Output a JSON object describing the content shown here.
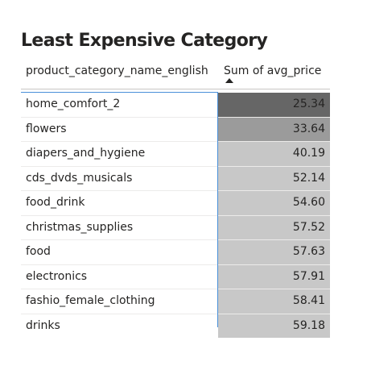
{
  "title": "Least Expensive Category",
  "chart_data": {
    "type": "table",
    "title": "Least Expensive Category",
    "columns": [
      "product_category_name_english",
      "Sum of avg_price"
    ],
    "sort": {
      "column": "Sum of avg_price",
      "direction": "ascending"
    },
    "rows": [
      {
        "category": "home_comfort_2",
        "value": "25.34"
      },
      {
        "category": "flowers",
        "value": "33.64"
      },
      {
        "category": "diapers_and_hygiene",
        "value": "40.19"
      },
      {
        "category": "cds_dvds_musicals",
        "value": "52.14"
      },
      {
        "category": "food_drink",
        "value": "54.60"
      },
      {
        "category": "christmas_supplies",
        "value": "57.52"
      },
      {
        "category": "food",
        "value": "57.63"
      },
      {
        "category": "electronics",
        "value": "57.91"
      },
      {
        "category": "fashio_female_clothing",
        "value": "58.41"
      },
      {
        "category": "drinks",
        "value": "59.18"
      }
    ],
    "conditional_format": {
      "low_color": "#666666",
      "high_color": "#c8c8c8"
    }
  }
}
